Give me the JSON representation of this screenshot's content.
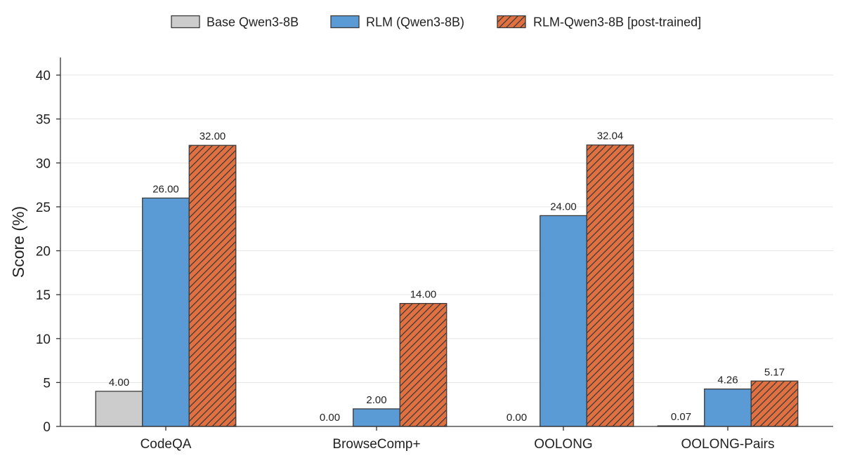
{
  "chart_data": {
    "type": "bar",
    "title": "",
    "xlabel": "",
    "ylabel": "Score (%)",
    "ylim": [
      0,
      42
    ],
    "yticks": [
      0,
      5,
      10,
      15,
      20,
      25,
      30,
      35,
      40
    ],
    "grid": true,
    "legend_position": "top-center",
    "categories": [
      "CodeQA",
      "BrowseComp+",
      "OOLONG",
      "OOLONG-Pairs"
    ],
    "series": [
      {
        "name": "Base Qwen3-8B",
        "color": "#cccccc",
        "hatch": false,
        "values": [
          4.0,
          0.0,
          0.0,
          0.07
        ],
        "labels": [
          "4.00",
          "0.00",
          "0.00",
          "0.07"
        ]
      },
      {
        "name": "RLM (Qwen3-8B)",
        "color": "#5b9bd5",
        "hatch": false,
        "values": [
          26.0,
          2.0,
          24.0,
          4.26
        ],
        "labels": [
          "26.00",
          "2.00",
          "24.00",
          "4.26"
        ]
      },
      {
        "name": "RLM-Qwen3-8B [post-trained]",
        "color": "#e07040",
        "hatch": true,
        "values": [
          32.0,
          14.0,
          32.04,
          5.17
        ],
        "labels": [
          "32.00",
          "14.00",
          "32.04",
          "5.17"
        ]
      }
    ]
  }
}
